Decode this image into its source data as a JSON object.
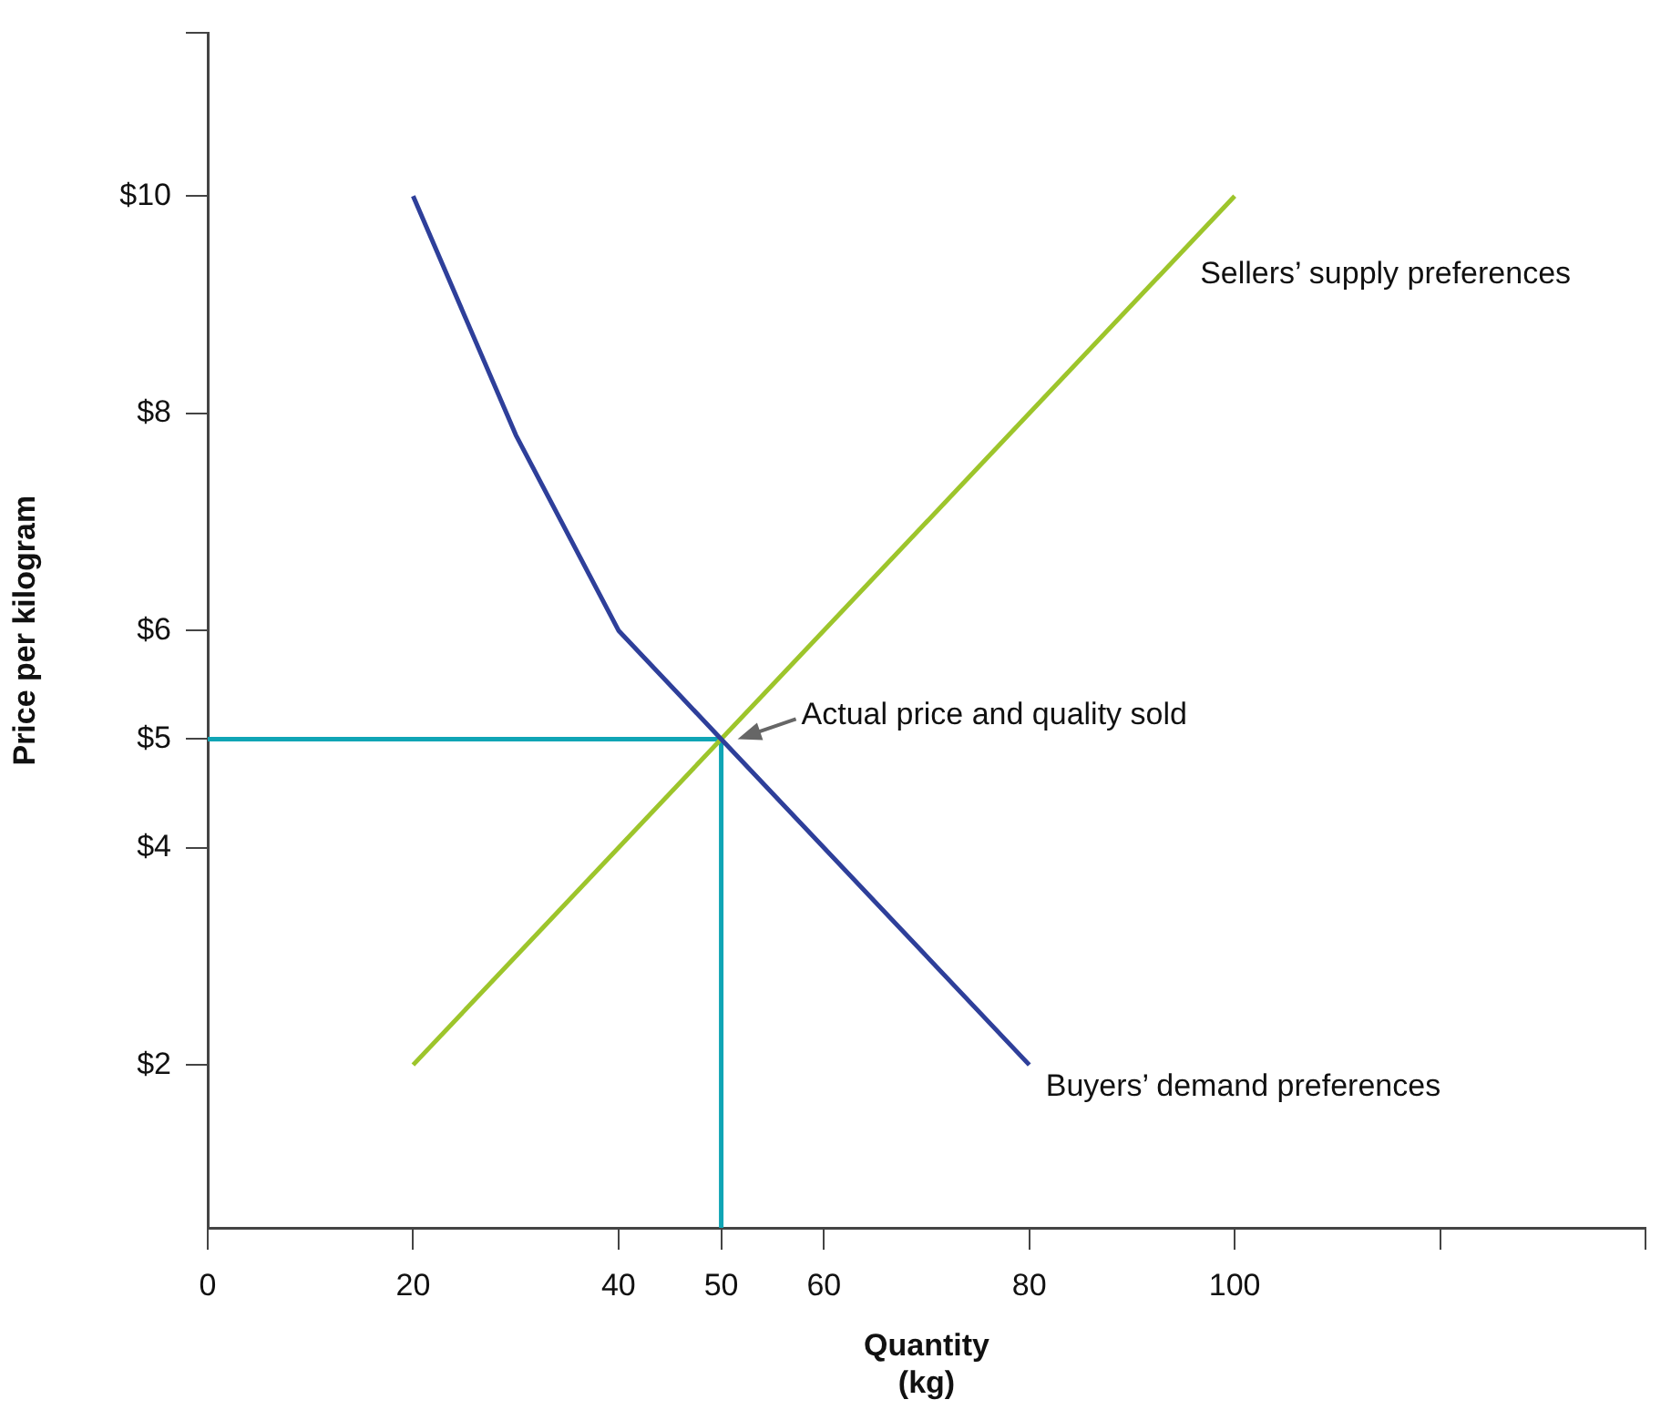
{
  "chart_data": {
    "type": "line",
    "xlabel": "Quantity\n(kg)",
    "ylabel": "Price per kilogram",
    "xlim": [
      0,
      140
    ],
    "ylim": [
      0.5,
      11.5
    ],
    "xticks": [
      0,
      20,
      40,
      50,
      60,
      80,
      100,
      {
        "value": 120,
        "label": null
      },
      {
        "value": 140,
        "label": null
      }
    ],
    "yticks": [
      {
        "value": 2,
        "label": "$2"
      },
      {
        "value": 4,
        "label": "$4"
      },
      {
        "value": 5,
        "label": "$5"
      },
      {
        "value": 6,
        "label": "$6"
      },
      {
        "value": 8,
        "label": "$8"
      },
      {
        "value": 10,
        "label": "$10"
      },
      {
        "value": 11.5,
        "label": null
      }
    ],
    "series": [
      {
        "name": "Buyers’ demand preferences",
        "color": "#2e3f9a",
        "x": [
          20,
          30,
          40,
          50,
          80
        ],
        "values": [
          10,
          7.8,
          6,
          5,
          2
        ]
      },
      {
        "name": "Sellers’ supply preferences",
        "color": "#9dc52b",
        "x": [
          20,
          100
        ],
        "values": [
          2,
          10
        ]
      },
      {
        "color": "#10a5b5",
        "x": [
          0,
          50,
          50
        ],
        "values": [
          5,
          5,
          0.5
        ]
      }
    ],
    "annotations": [
      {
        "text": "Actual price and quality sold",
        "x": 50,
        "y": 5
      }
    ],
    "grid": false,
    "legend": false,
    "marker": "none",
    "line_style": "solid"
  }
}
